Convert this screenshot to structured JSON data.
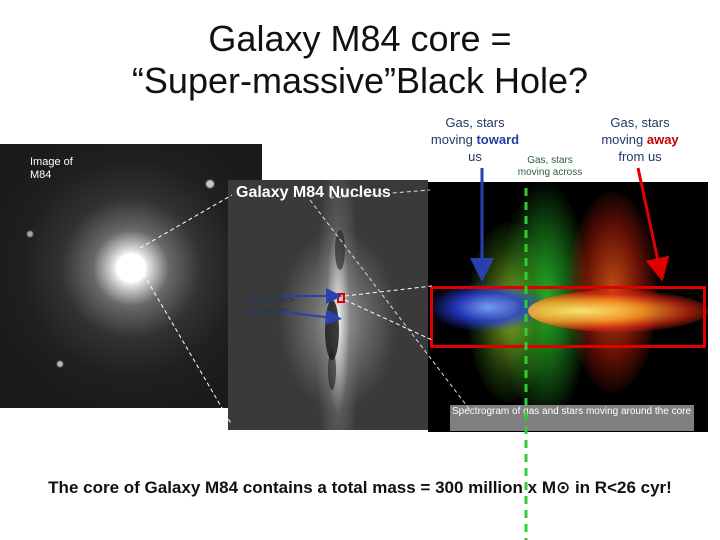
{
  "title_line1": "Galaxy M84 core =",
  "title_line2": "“Super-massive”Black Hole?",
  "toward": {
    "line1": "Gas, stars",
    "line2a": "moving ",
    "highlight": "toward",
    "line3": "us"
  },
  "across": {
    "line1": "Gas, stars",
    "line2": "moving across"
  },
  "away": {
    "line1": "Gas, stars",
    "line2a": "moving ",
    "highlight": "away",
    "line3": "from us"
  },
  "image_label_line1": "Image of",
  "image_label_line2": "M84",
  "nucleus_title": "Galaxy M84 Nucleus",
  "stis_label_line1": "Area STIS",
  "stis_label_line2": "observes",
  "spectrogram_caption": "Spectrogram of gas and stars moving around the core",
  "conclusion": "The core of Galaxy M84 contains a total mass = 300 million x M⊙ in R<26 cyr!",
  "colors": {
    "toward_arrow": "#2a3fb0",
    "away_arrow": "#e00000",
    "highlight_box": "#e00000",
    "center_line": "#33cc33"
  }
}
